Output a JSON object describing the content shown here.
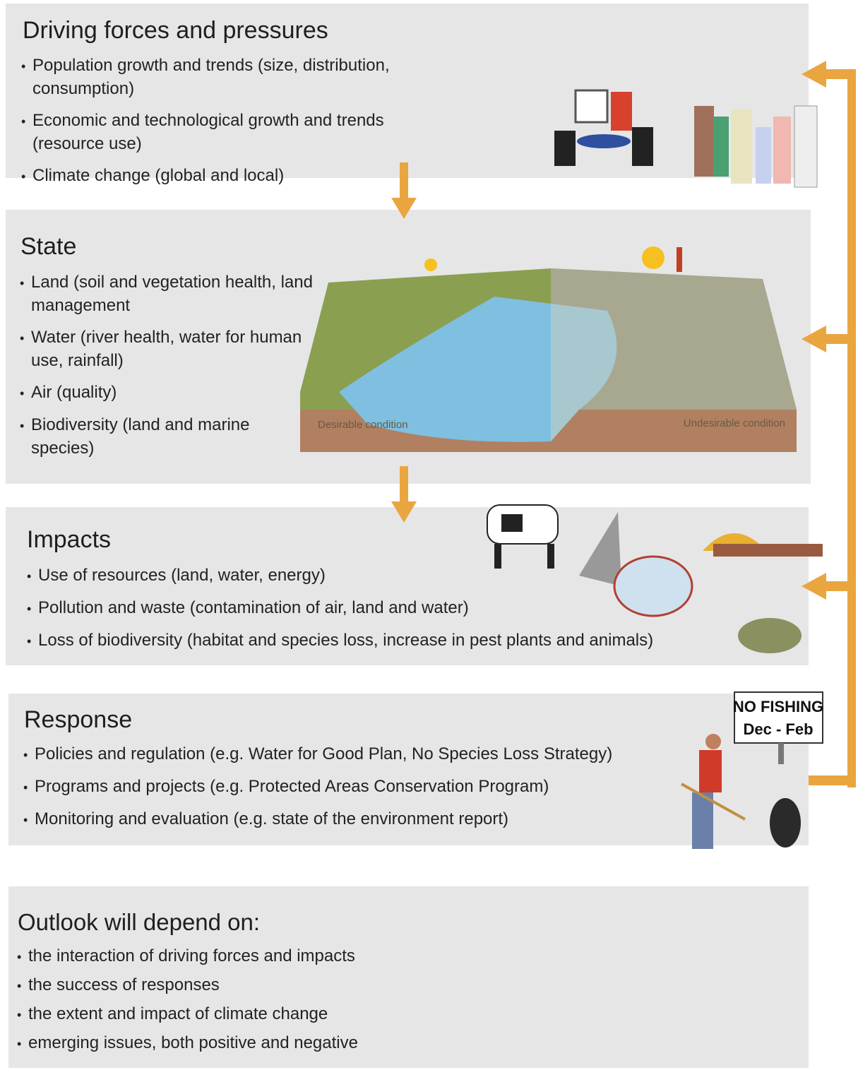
{
  "sections": [
    {
      "title": "Driving forces and pressures",
      "items": [
        "Population growth and trends (size, distribution, consumption)",
        "Economic and technological growth and trends (resource use)",
        "Climate change (global and local)"
      ]
    },
    {
      "title": "State",
      "items": [
        "Land (soil and vegetation health, land management",
        "Water (river health, water for human use, rainfall)",
        "Air (quality)",
        "Biodiversity (land and marine species)"
      ]
    },
    {
      "title": "Impacts",
      "items": [
        "Use of resources (land, water, energy)",
        "Pollution and waste (contamination of air, land and water)",
        "Loss of biodiversity (habitat and species loss, increase in pest plants and animals)"
      ]
    },
    {
      "title": "Response",
      "items": [
        "Policies and regulation (e.g. Water for Good Plan, No Species Loss Strategy)",
        "Programs and projects (e.g. Protected Areas Conservation Program)",
        "Monitoring and evaluation (e.g. state of the environment report)"
      ]
    },
    {
      "title": "Outlook will depend on:",
      "items": [
        "the interaction of driving forces and impacts",
        "the success of responses",
        "the extent and impact of climate change",
        "emerging issues, both positive and negative"
      ]
    }
  ],
  "illustration": {
    "left_label": "Desirable condition",
    "right_label": "Undesirable condition"
  },
  "sign": {
    "line1": "NO FISHING",
    "line2": "Dec - Feb"
  }
}
